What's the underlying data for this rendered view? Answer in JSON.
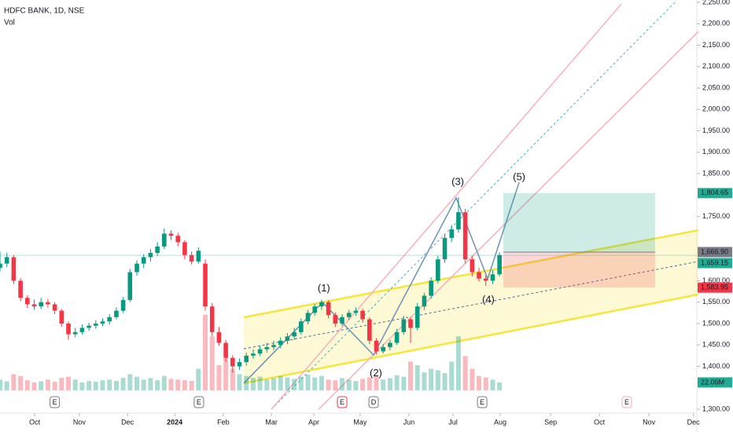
{
  "chart_data": {
    "type": "candlestick",
    "title": "HDFC BANK, 1D, NSE",
    "subtitle": "Vol",
    "x": [
      0,
      3,
      6,
      9,
      12,
      15,
      18,
      21,
      24,
      27,
      30,
      33,
      36,
      39,
      42,
      45,
      48,
      51,
      54,
      57,
      60,
      63,
      66,
      69,
      72,
      75,
      78,
      81,
      84,
      87,
      90,
      93,
      96,
      99,
      102,
      105,
      108,
      111,
      114,
      117,
      120,
      123,
      126,
      129,
      132,
      135,
      138,
      141,
      144,
      147,
      150,
      153,
      156,
      159,
      162,
      165,
      168,
      171,
      174,
      177,
      180,
      183,
      186,
      189,
      192,
      195,
      198,
      201,
      204,
      207,
      210,
      213,
      216,
      219
    ],
    "open": [
      1630,
      1640,
      1655,
      1600,
      1560,
      1545,
      1540,
      1550,
      1545,
      1530,
      1500,
      1475,
      1480,
      1490,
      1495,
      1500,
      1505,
      1515,
      1530,
      1555,
      1620,
      1640,
      1655,
      1665,
      1680,
      1710,
      1705,
      1690,
      1660,
      1645,
      1640,
      1540,
      1480,
      1455,
      1420,
      1400,
      1410,
      1425,
      1430,
      1440,
      1445,
      1450,
      1460,
      1470,
      1480,
      1505,
      1525,
      1540,
      1550,
      1520,
      1500,
      1515,
      1525,
      1530,
      1510,
      1460,
      1435,
      1445,
      1455,
      1480,
      1510,
      1490,
      1540,
      1565,
      1600,
      1650,
      1700,
      1720,
      1760,
      1650,
      1620,
      1605,
      1600,
      1615
    ],
    "high": [
      1668,
      1665,
      1660,
      1606,
      1566,
      1556,
      1560,
      1558,
      1550,
      1534,
      1505,
      1490,
      1498,
      1502,
      1508,
      1512,
      1522,
      1538,
      1562,
      1628,
      1648,
      1662,
      1674,
      1690,
      1722,
      1718,
      1712,
      1695,
      1668,
      1678,
      1650,
      1548,
      1492,
      1462,
      1426,
      1418,
      1432,
      1440,
      1448,
      1455,
      1460,
      1468,
      1478,
      1490,
      1512,
      1532,
      1546,
      1556,
      1555,
      1526,
      1522,
      1532,
      1538,
      1535,
      1515,
      1466,
      1452,
      1462,
      1488,
      1518,
      1515,
      1548,
      1572,
      1608,
      1658,
      1708,
      1730,
      1795,
      1768,
      1658,
      1630,
      1612,
      1625,
      1666
    ],
    "low": [
      1622,
      1632,
      1592,
      1552,
      1536,
      1532,
      1534,
      1538,
      1522,
      1492,
      1462,
      1468,
      1474,
      1483,
      1488,
      1494,
      1498,
      1510,
      1525,
      1550,
      1612,
      1630,
      1645,
      1658,
      1674,
      1695,
      1680,
      1650,
      1638,
      1640,
      1530,
      1470,
      1448,
      1410,
      1385,
      1392,
      1402,
      1418,
      1424,
      1432,
      1438,
      1442,
      1452,
      1462,
      1474,
      1498,
      1518,
      1532,
      1512,
      1492,
      1494,
      1508,
      1518,
      1502,
      1452,
      1428,
      1430,
      1438,
      1450,
      1474,
      1455,
      1484,
      1532,
      1558,
      1594,
      1642,
      1690,
      1712,
      1640,
      1610,
      1598,
      1588,
      1592,
      1610
    ],
    "close": [
      1640,
      1655,
      1600,
      1560,
      1545,
      1540,
      1550,
      1545,
      1530,
      1500,
      1475,
      1480,
      1490,
      1495,
      1500,
      1505,
      1515,
      1530,
      1555,
      1620,
      1640,
      1655,
      1665,
      1680,
      1710,
      1705,
      1690,
      1660,
      1645,
      1670,
      1540,
      1480,
      1455,
      1420,
      1400,
      1410,
      1425,
      1430,
      1440,
      1445,
      1450,
      1460,
      1470,
      1480,
      1505,
      1525,
      1540,
      1550,
      1520,
      1500,
      1515,
      1525,
      1530,
      1510,
      1460,
      1435,
      1445,
      1455,
      1480,
      1510,
      1490,
      1540,
      1565,
      1600,
      1650,
      1700,
      1720,
      1760,
      1650,
      1620,
      1605,
      1600,
      1615,
      1660
    ],
    "volume": [
      30,
      25,
      45,
      40,
      28,
      22,
      25,
      30,
      24,
      35,
      38,
      30,
      22,
      26,
      24,
      28,
      30,
      26,
      35,
      45,
      38,
      30,
      34,
      28,
      40,
      32,
      30,
      28,
      26,
      60,
      210,
      150,
      70,
      90,
      60,
      45,
      40,
      35,
      38,
      30,
      34,
      40,
      36,
      32,
      38,
      44,
      36,
      40,
      30,
      28,
      34,
      30,
      26,
      32,
      36,
      40,
      30,
      34,
      42,
      38,
      80,
      70,
      50,
      60,
      56,
      48,
      80,
      150,
      95,
      60,
      40,
      36,
      30,
      22.06
    ],
    "volume_tag": "22.06M",
    "vlim": [
      0,
      240
    ],
    "up_color": "#089981",
    "down_color": "#f23645",
    "xlim": [
      0,
      305.5
    ],
    "xticks": [
      {
        "value": 15.2,
        "label": "Oct"
      },
      {
        "value": 34.8,
        "label": "Nov"
      },
      {
        "value": 55.9,
        "label": "Dec"
      },
      {
        "value": 76.6,
        "label": "2024"
      },
      {
        "value": 97.9,
        "label": "Feb"
      },
      {
        "value": 119,
        "label": "Mar"
      },
      {
        "value": 137.6,
        "label": "Apr"
      },
      {
        "value": 157.9,
        "label": "May"
      },
      {
        "value": 179.3,
        "label": "Jun"
      },
      {
        "value": 198.6,
        "label": "Jul"
      },
      {
        "value": 219.3,
        "label": "Aug"
      },
      {
        "value": 241.4,
        "label": "Sep"
      },
      {
        "value": 262.8,
        "label": "Oct"
      },
      {
        "value": 284.5,
        "label": "Nov"
      },
      {
        "value": 304,
        "label": "Dec"
      }
    ],
    "ylim": [
      1300,
      2250
    ],
    "yticks": [
      {
        "value": 1300,
        "label": "1,300.00"
      },
      {
        "value": 1400,
        "label": "1,400.00"
      },
      {
        "value": 1450,
        "label": "1,450.00"
      },
      {
        "value": 1500,
        "label": "1,500.00"
      },
      {
        "value": 1550,
        "label": "1,550.00"
      },
      {
        "value": 1600,
        "label": "1,600.00"
      },
      {
        "value": 1750,
        "label": "1,750.00"
      },
      {
        "value": 1850,
        "label": "1,850.00"
      },
      {
        "value": 1900,
        "label": "1,900.00"
      },
      {
        "value": 1950,
        "label": "1,950.00"
      },
      {
        "value": 2000,
        "label": "2,000.00"
      },
      {
        "value": 2050,
        "label": "2,050.00"
      },
      {
        "value": 2100,
        "label": "2,100.00"
      },
      {
        "value": 2150,
        "label": "2,150.00"
      },
      {
        "value": 2200,
        "label": "2,200.00"
      },
      {
        "value": 2250,
        "label": "2,250.00"
      }
    ],
    "last_price": {
      "value": 1659.15,
      "label": "1,659.15",
      "color": "#22ab94"
    },
    "position": {
      "x0": 220.7,
      "x1": 287.2,
      "target": {
        "value": 1804.65,
        "label": "1,804.65",
        "color": "#22ab94"
      },
      "entry": {
        "value": 1666.9,
        "label": "1,666.90",
        "color": "#787b86"
      },
      "stop": {
        "value": 1583.95,
        "label": "1,583.95",
        "color": "#f23645"
      }
    },
    "drawings": [
      {
        "type": "channel",
        "top": [
          [
            106.9,
            1514.6
          ],
          [
            306.2,
            1718
          ]
        ],
        "bottom": [
          [
            106.9,
            1360.6
          ],
          [
            306.2,
            1568
          ]
        ],
        "color": "#f7e53b"
      },
      {
        "type": "line",
        "points": [
          [
            106.9,
            1441
          ],
          [
            306.2,
            1645
          ]
        ],
        "color": "#4a6a9a",
        "dashed": true
      },
      {
        "type": "line",
        "points": [
          [
            119,
            1300
          ],
          [
            295.9,
            2250
          ]
        ],
        "color": "#3fb1c9",
        "dashed": true
      },
      {
        "type": "line",
        "points": [
          [
            119,
            1300
          ],
          [
            272.4,
            2246
          ]
        ],
        "color": "#f6b0bd",
        "dashed": false
      },
      {
        "type": "line",
        "points": [
          [
            139.7,
            1300
          ],
          [
            306.2,
            2182
          ]
        ],
        "color": "#f6b0bd",
        "dashed": false
      },
      {
        "type": "line",
        "points": [
          [
            106.9,
            1360.6
          ],
          [
            141.4,
            1549.5
          ],
          [
            163.8,
            1426.6
          ],
          [
            200,
            1793.4
          ],
          [
            213.8,
            1604.5
          ],
          [
            227.6,
            1830
          ]
        ],
        "color": "#6b93b8",
        "dashed": false
      }
    ],
    "annotations": [
      {
        "text": "(1)",
        "x": 142,
        "y": 1581
      },
      {
        "text": "(2)",
        "x": 164.8,
        "y": 1383
      },
      {
        "text": "(3)",
        "x": 200.7,
        "y": 1830
      },
      {
        "text": "(4)",
        "x": 214.1,
        "y": 1555
      },
      {
        "text": "(5)",
        "x": 227.6,
        "y": 1841
      }
    ],
    "events": [
      {
        "label": "E",
        "x": 24,
        "color": "#787b86"
      },
      {
        "label": "E",
        "x": 87.2,
        "color": "#787b86"
      },
      {
        "label": "E",
        "x": 150,
        "color": "#f23645"
      },
      {
        "label": "D",
        "x": 163.8,
        "color": "#787b86"
      },
      {
        "label": "E",
        "x": 211.4,
        "color": "#787b86"
      },
      {
        "label": "E",
        "x": 274.8,
        "color": "#f7a8b8"
      }
    ]
  }
}
